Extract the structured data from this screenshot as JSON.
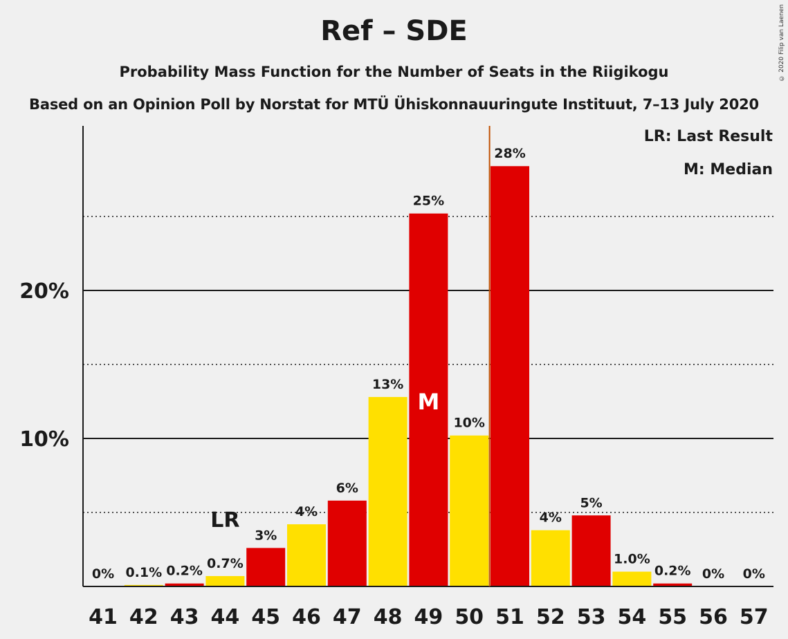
{
  "chart_data": {
    "type": "bar",
    "title": "Ref – SDE",
    "subtitle": "Probability Mass Function for the Number of Seats in the Riigikogu",
    "source": "Based on an Opinion Poll by Norstat for MTÜ Ühiskonnauuringute Instituut, 7–13 July 2020",
    "copyright": "© 2020 Filip van Laenen",
    "categories": [
      "41",
      "42",
      "43",
      "44",
      "45",
      "46",
      "47",
      "48",
      "49",
      "50",
      "51",
      "52",
      "53",
      "54",
      "55",
      "56",
      "57"
    ],
    "values": [
      0,
      0.1,
      0.2,
      0.7,
      2.6,
      4.2,
      5.8,
      12.8,
      25.2,
      10.2,
      28.4,
      3.8,
      4.8,
      1.0,
      0.2,
      0,
      0
    ],
    "labels": [
      "0%",
      "0.1%",
      "0.2%",
      "0.7%",
      "3%",
      "4%",
      "6%",
      "13%",
      "25%",
      "10%",
      "28%",
      "4%",
      "5%",
      "1.0%",
      "0.2%",
      "0%",
      "0%"
    ],
    "bar_colors": [
      "#f0f0f0",
      "#ffe000",
      "#e00000",
      "#ffe000",
      "#e00000",
      "#ffe000",
      "#e00000",
      "#ffe000",
      "#e00000",
      "#ffe000",
      "#e00000",
      "#ffe000",
      "#e00000",
      "#ffe000",
      "#e00000",
      "#ffe000",
      "#e00000"
    ],
    "ylim": [
      0,
      30
    ],
    "yticks": [
      {
        "value": 10,
        "label": "10%"
      },
      {
        "value": 20,
        "label": "20%"
      }
    ],
    "minor_gridlines": [
      5,
      15,
      25
    ],
    "last_result": {
      "category": "44",
      "marker": "LR"
    },
    "median": {
      "category": "49",
      "marker": "M"
    },
    "threshold_line": {
      "between": [
        "50",
        "51"
      ],
      "color": "#c05000"
    },
    "legend": {
      "position": "top-right",
      "items": [
        "LR: Last Result",
        "M: Median"
      ]
    }
  }
}
